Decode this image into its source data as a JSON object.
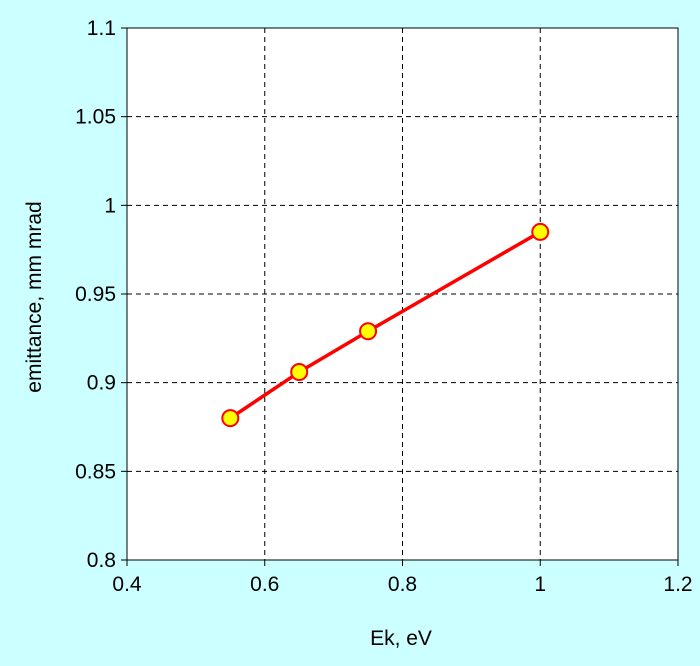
{
  "chart_data": {
    "type": "line",
    "title": "",
    "xlabel": "Ek, eV",
    "ylabel": "emittance, mm mrad",
    "xlim": [
      0.4,
      1.2
    ],
    "ylim": [
      0.8,
      1.1
    ],
    "x_ticks": [
      0.4,
      0.6,
      0.8,
      1.0,
      1.2
    ],
    "x_tick_labels": [
      "0.4",
      "0.6",
      "0.8",
      "1",
      "1.2"
    ],
    "y_ticks": [
      0.8,
      0.85,
      0.9,
      0.95,
      1.0,
      1.05,
      1.1
    ],
    "y_tick_labels": [
      "0.8",
      "0.85",
      "0.9",
      "0.95",
      "1",
      "1.05",
      "1.1"
    ],
    "grid": true,
    "legend": "none",
    "series": [
      {
        "x": [
          0.55,
          0.65,
          0.75,
          1.0
        ],
        "y": [
          0.88,
          0.906,
          0.929,
          0.985
        ],
        "line_color": "#ff0000",
        "marker_fill": "#ffff00",
        "marker_edge": "#ff0000"
      }
    ]
  },
  "colors": {
    "background": "#ccffff",
    "plot_area": "#ffffff",
    "grid": "#000000"
  }
}
